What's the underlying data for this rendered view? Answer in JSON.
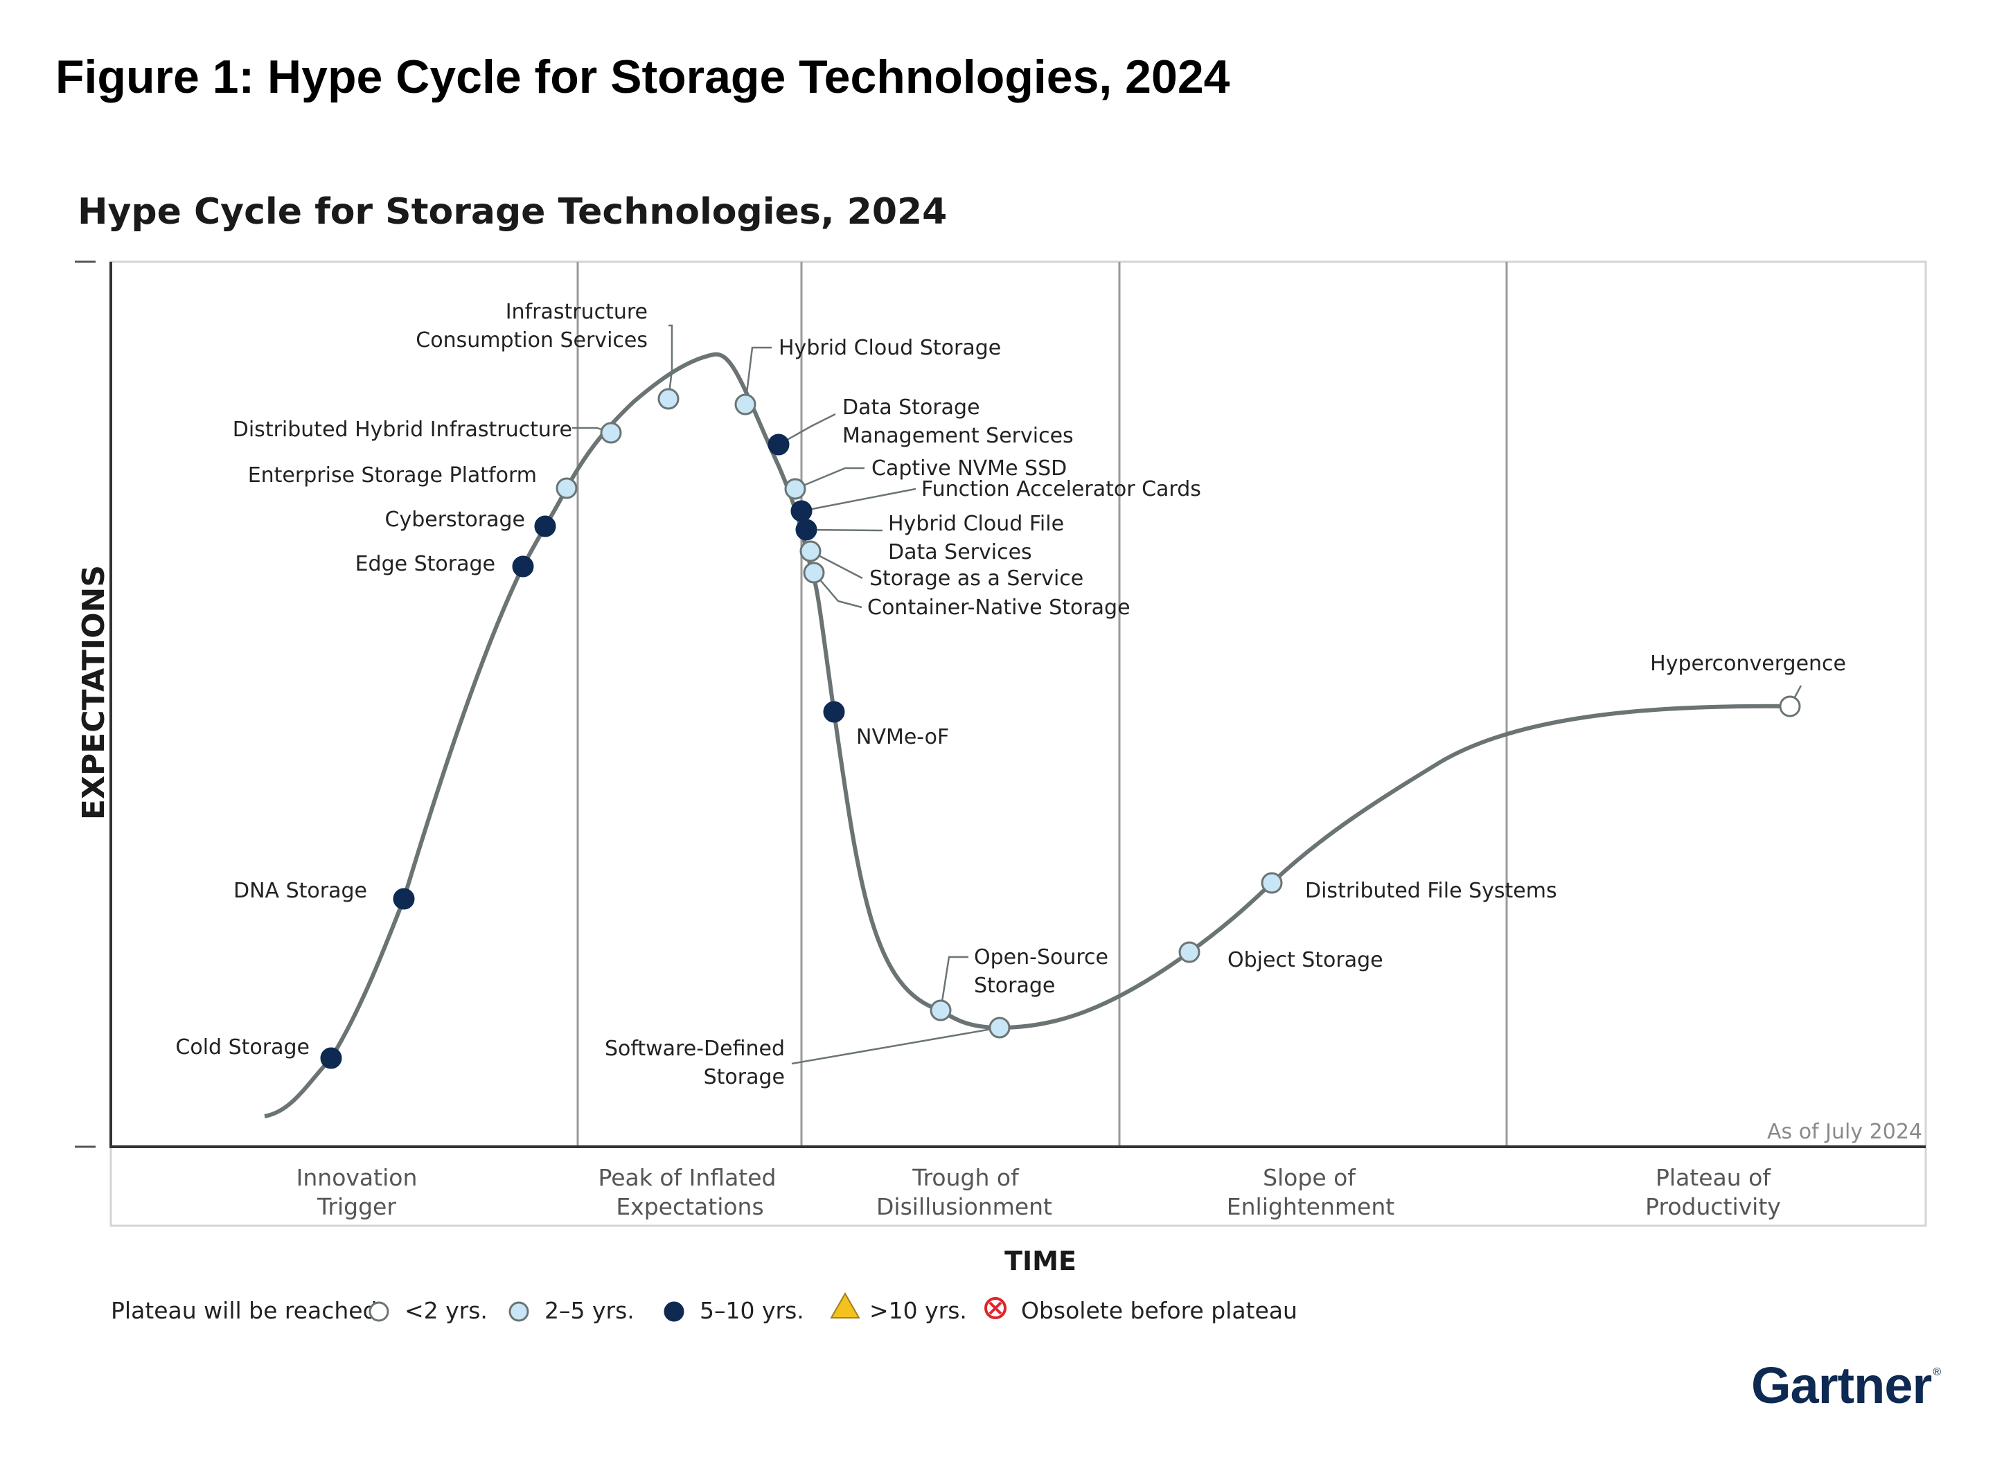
{
  "figure_title": "Figure 1: Hype Cycle for Storage Technologies, 2024",
  "brand": "Gartner",
  "colors": {
    "curve": "#6b7474",
    "grid": "#9a9a9a",
    "lt2": "#ffffff",
    "y2to5": "#c8e6f5",
    "y5to10": "#0e2a52",
    "gt10": "#f4c21e",
    "obsolete": "#e0242b",
    "point_stroke": "#6b7474"
  },
  "chart_data": {
    "type": "hype_cycle",
    "title": "Hype Cycle for Storage Technologies, 2024",
    "xlabel": "TIME",
    "ylabel": "EXPECTATIONS",
    "as_of": "As of July 2024",
    "phases": [
      [
        "Innovation",
        "Trigger"
      ],
      [
        "Peak of Inflated",
        "Expectations"
      ],
      [
        "Trough of",
        "Disillusionment"
      ],
      [
        "Slope of",
        "Enlightenment"
      ],
      [
        "Plateau of",
        "Productivity"
      ]
    ],
    "legend": {
      "label": "Plateau will be reached:",
      "items": [
        {
          "key": "lt2",
          "label": "<2 yrs."
        },
        {
          "key": "y2to5",
          "label": "2–5 yrs."
        },
        {
          "key": "y5to10",
          "label": "5–10 yrs."
        },
        {
          "key": "gt10",
          "label": ">10 yrs."
        },
        {
          "key": "obsolete",
          "label": "Obsolete before plateau"
        }
      ]
    },
    "technologies": [
      {
        "lines": [
          "Cold Storage"
        ],
        "phase": "Innovation Trigger",
        "plateau": "5–10 yrs."
      },
      {
        "lines": [
          "DNA Storage"
        ],
        "phase": "Innovation Trigger",
        "plateau": "5–10 yrs."
      },
      {
        "lines": [
          "Edge Storage"
        ],
        "phase": "Innovation Trigger",
        "plateau": "5–10 yrs."
      },
      {
        "lines": [
          "Cyberstorage"
        ],
        "phase": "Innovation Trigger",
        "plateau": "5–10 yrs."
      },
      {
        "lines": [
          "Enterprise Storage Platform"
        ],
        "phase": "Innovation Trigger",
        "plateau": "2–5 yrs."
      },
      {
        "lines": [
          "Distributed Hybrid Infrastructure"
        ],
        "phase": "Peak of Inflated Expectations",
        "plateau": "2–5 yrs."
      },
      {
        "lines": [
          "Infrastructure",
          "Consumption Services"
        ],
        "phase": "Peak of Inflated Expectations",
        "plateau": "2–5 yrs."
      },
      {
        "lines": [
          "Hybrid Cloud Storage"
        ],
        "phase": "Peak of Inflated Expectations",
        "plateau": "2–5 yrs."
      },
      {
        "lines": [
          "Data Storage",
          "Management Services"
        ],
        "phase": "Peak of Inflated Expectations",
        "plateau": "5–10 yrs."
      },
      {
        "lines": [
          "Captive NVMe SSD"
        ],
        "phase": "Peak of Inflated Expectations",
        "plateau": "2–5 yrs."
      },
      {
        "lines": [
          "Function Accelerator Cards"
        ],
        "phase": "Peak of Inflated Expectations",
        "plateau": "5–10 yrs."
      },
      {
        "lines": [
          "Hybrid Cloud File",
          "Data Services"
        ],
        "phase": "Peak of Inflated Expectations",
        "plateau": "5–10 yrs."
      },
      {
        "lines": [
          "Storage as a Service"
        ],
        "phase": "Peak of Inflated Expectations",
        "plateau": "2–5 yrs."
      },
      {
        "lines": [
          "Container-Native Storage"
        ],
        "phase": "Peak of Inflated Expectations",
        "plateau": "2–5 yrs."
      },
      {
        "lines": [
          "NVMe-oF"
        ],
        "phase": "Trough of Disillusionment",
        "plateau": "5–10 yrs."
      },
      {
        "lines": [
          "Open-Source",
          "Storage"
        ],
        "phase": "Trough of Disillusionment",
        "plateau": "2–5 yrs."
      },
      {
        "lines": [
          "Software-Defined",
          "Storage"
        ],
        "phase": "Trough of Disillusionment",
        "plateau": "2–5 yrs."
      },
      {
        "lines": [
          "Object Storage"
        ],
        "phase": "Slope of Enlightenment",
        "plateau": "2–5 yrs."
      },
      {
        "lines": [
          "Distributed File Systems"
        ],
        "phase": "Slope of Enlightenment",
        "plateau": "2–5 yrs."
      },
      {
        "lines": [
          "Hyperconvergence"
        ],
        "phase": "Plateau of Productivity",
        "plateau": "<2 yrs."
      }
    ]
  }
}
